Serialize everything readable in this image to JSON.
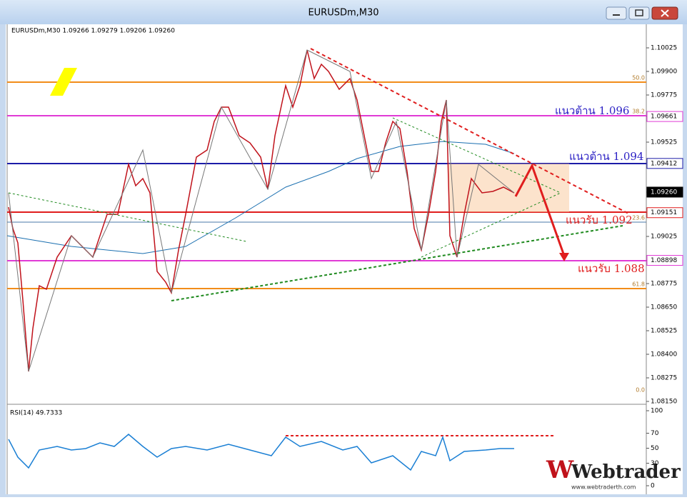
{
  "window": {
    "title": "EURUSDm,M30"
  },
  "chart": {
    "header": "EURUSDm,M30  1.09266 1.09279 1.09206 1.09260",
    "price_axis": [
      "1.10025",
      "1.09900",
      "1.09775",
      "1.09661",
      "1.09525",
      "1.09412",
      "1.09260",
      "1.09151",
      "1.09025",
      "1.08898",
      "1.08775",
      "1.08650",
      "1.08525",
      "1.08400",
      "1.08275",
      "1.08150"
    ],
    "fib_levels": [
      "50.0",
      "38.2",
      "23.6",
      "61.8",
      "0.0"
    ],
    "annotations": [
      "แนวต้าน 1.096",
      "แนวต้าน 1.094",
      "แนวรับ 1.092",
      "แนวรับ 1.088"
    ]
  },
  "rsi": {
    "label": "RSI(14) 49.7333",
    "axis": [
      "100",
      "70",
      "50",
      "30",
      "0"
    ]
  },
  "logo": {
    "brand": "Webtrader",
    "url": "www.webtraderth.com"
  }
}
